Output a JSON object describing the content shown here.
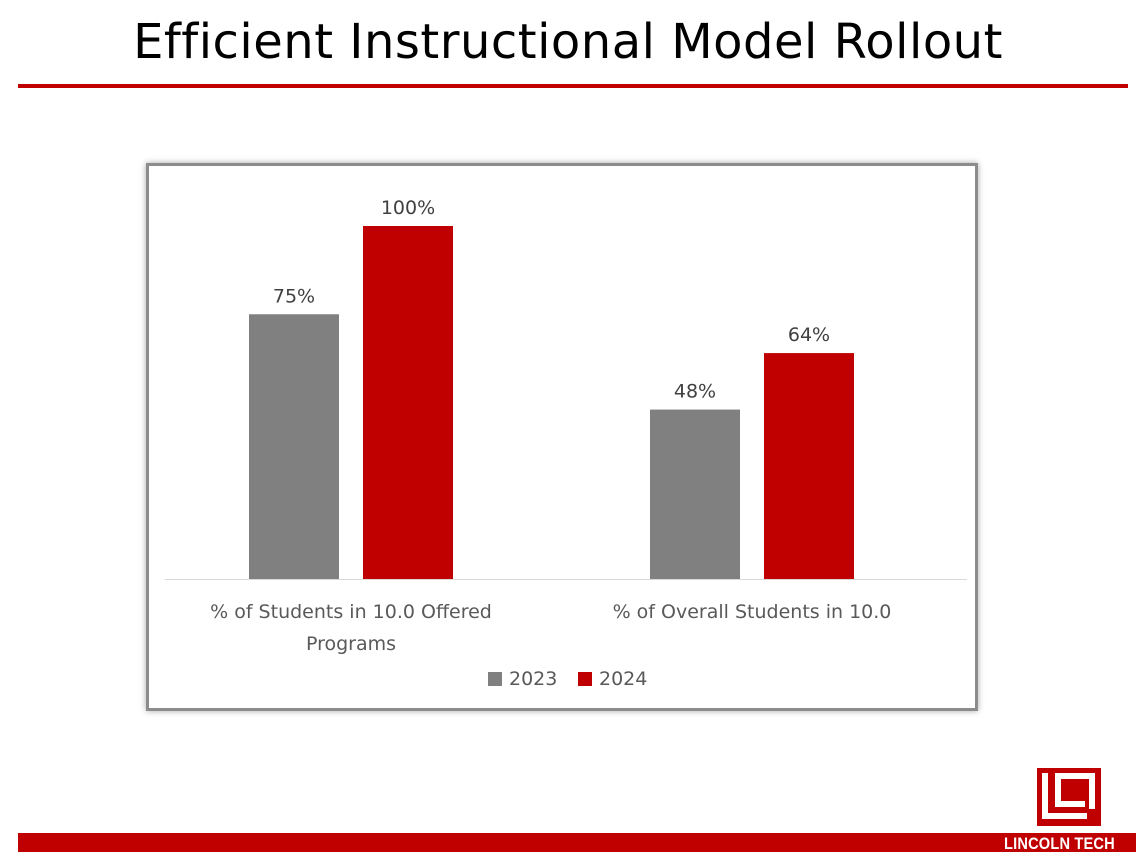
{
  "slide": {
    "title": "Efficient Instructional Model Rollout"
  },
  "brand": {
    "logo_text": "LINCOLN TECH",
    "accent_color": "#c00000",
    "neutral_color": "#808080"
  },
  "chart_data": {
    "type": "bar",
    "title": "",
    "xlabel": "",
    "ylabel": "",
    "ylim": [
      0,
      100
    ],
    "grid": false,
    "legend_position": "bottom",
    "categories": [
      [
        "% of Students in 10.0 Offered",
        "Programs"
      ],
      [
        "% of Overall Students in 10.0"
      ]
    ],
    "series": [
      {
        "name": "2023",
        "color": "#808080",
        "values": [
          75,
          48
        ],
        "labels": [
          "75%",
          "48%"
        ]
      },
      {
        "name": "2024",
        "color": "#c00000",
        "values": [
          100,
          64
        ],
        "labels": [
          "100%",
          "64%"
        ]
      }
    ]
  }
}
